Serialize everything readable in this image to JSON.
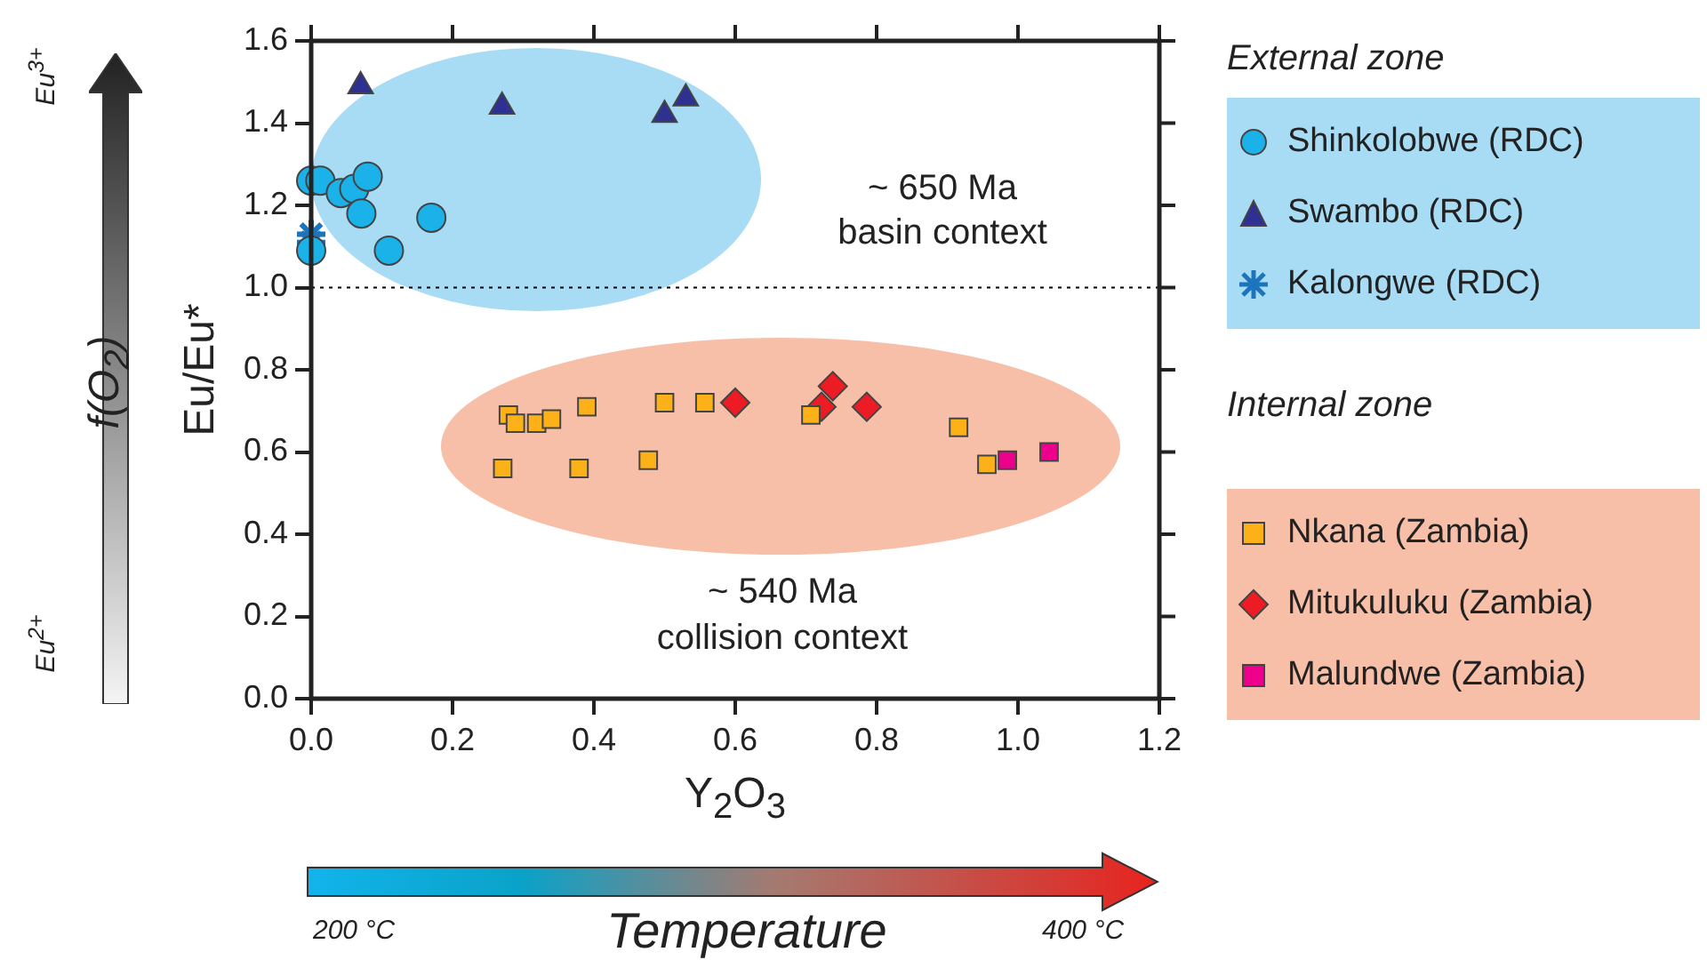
{
  "chart_data": {
    "type": "scatter",
    "xlabel": "Y$_{2}$O$_{3}$",
    "ylabel": "Eu/Eu*",
    "xlim": [
      0,
      1.2
    ],
    "xticks": [
      {
        "value": 0,
        "label": "0.0"
      },
      0.2,
      0.4,
      0.6,
      0.8,
      {
        "value": 1,
        "label": "1.0"
      },
      1.2
    ],
    "ylim": [
      0,
      1.6
    ],
    "yticks": [
      {
        "value": 0,
        "label": "0.0"
      },
      0.2,
      0.4,
      0.6,
      0.8,
      {
        "value": 1,
        "label": "1.0"
      },
      1.2,
      1.4,
      1.6
    ],
    "grid": false,
    "legend": "right",
    "ref_lines": [
      {
        "axis": "y",
        "value": 1.0,
        "label": null,
        "color": "#000000",
        "line_style": "dotted"
      }
    ],
    "annotations": [
      "~ 650 Ma",
      "basin context",
      "~ 540 Ma",
      "collision context",
      "External zone",
      "Internal zone",
      "f(O$_{2}$)",
      "Eu$^{3+}$",
      "Eu$^{2+}$",
      "Temperature",
      "200 °C",
      "400 °C"
    ],
    "series": [
      {
        "name": "Shinkolobwe (RDC)",
        "color": "#1ab2e8",
        "marker": "circle",
        "x": [
          0.0,
          0.013,
          0.042,
          0.061,
          0.08,
          0.071,
          0.17,
          0.11,
          0.0
        ],
        "values": [
          1.26,
          1.26,
          1.23,
          1.24,
          1.27,
          1.18,
          1.17,
          1.09,
          1.09
        ]
      },
      {
        "name": "Swambo (RDC)",
        "color": "#2e3192",
        "marker": "triangle",
        "x": [
          0.07,
          0.27,
          0.5,
          0.53
        ],
        "values": [
          1.49,
          1.44,
          1.42,
          1.46
        ]
      },
      {
        "name": "Kalongwe (RDC)",
        "color": "#1c75bc",
        "marker": "cross",
        "x": [
          0.0,
          0.0
        ],
        "values": [
          1.13,
          1.11
        ]
      },
      {
        "name": "Nkana (Zambia)",
        "color": "#fbb117",
        "marker": "square",
        "x": [
          0.279,
          0.289,
          0.319,
          0.34,
          0.39,
          0.5,
          0.557,
          0.707,
          0.916,
          0.271,
          0.379,
          0.477,
          0.956
        ],
        "values": [
          0.69,
          0.67,
          0.67,
          0.68,
          0.71,
          0.72,
          0.72,
          0.69,
          0.66,
          0.56,
          0.56,
          0.58,
          0.57
        ]
      },
      {
        "name": "Mitukuluku (Zambia)",
        "color": "#ed1c24",
        "marker": "diamond",
        "x": [
          0.6,
          0.722,
          0.738,
          0.786
        ],
        "values": [
          0.72,
          0.71,
          0.76,
          0.71
        ]
      },
      {
        "name": "Malundwe (Zambia)",
        "color": "#ec008c",
        "marker": "square",
        "x": [
          0.985,
          1.044
        ],
        "values": [
          0.58,
          0.6
        ]
      }
    ]
  }
}
